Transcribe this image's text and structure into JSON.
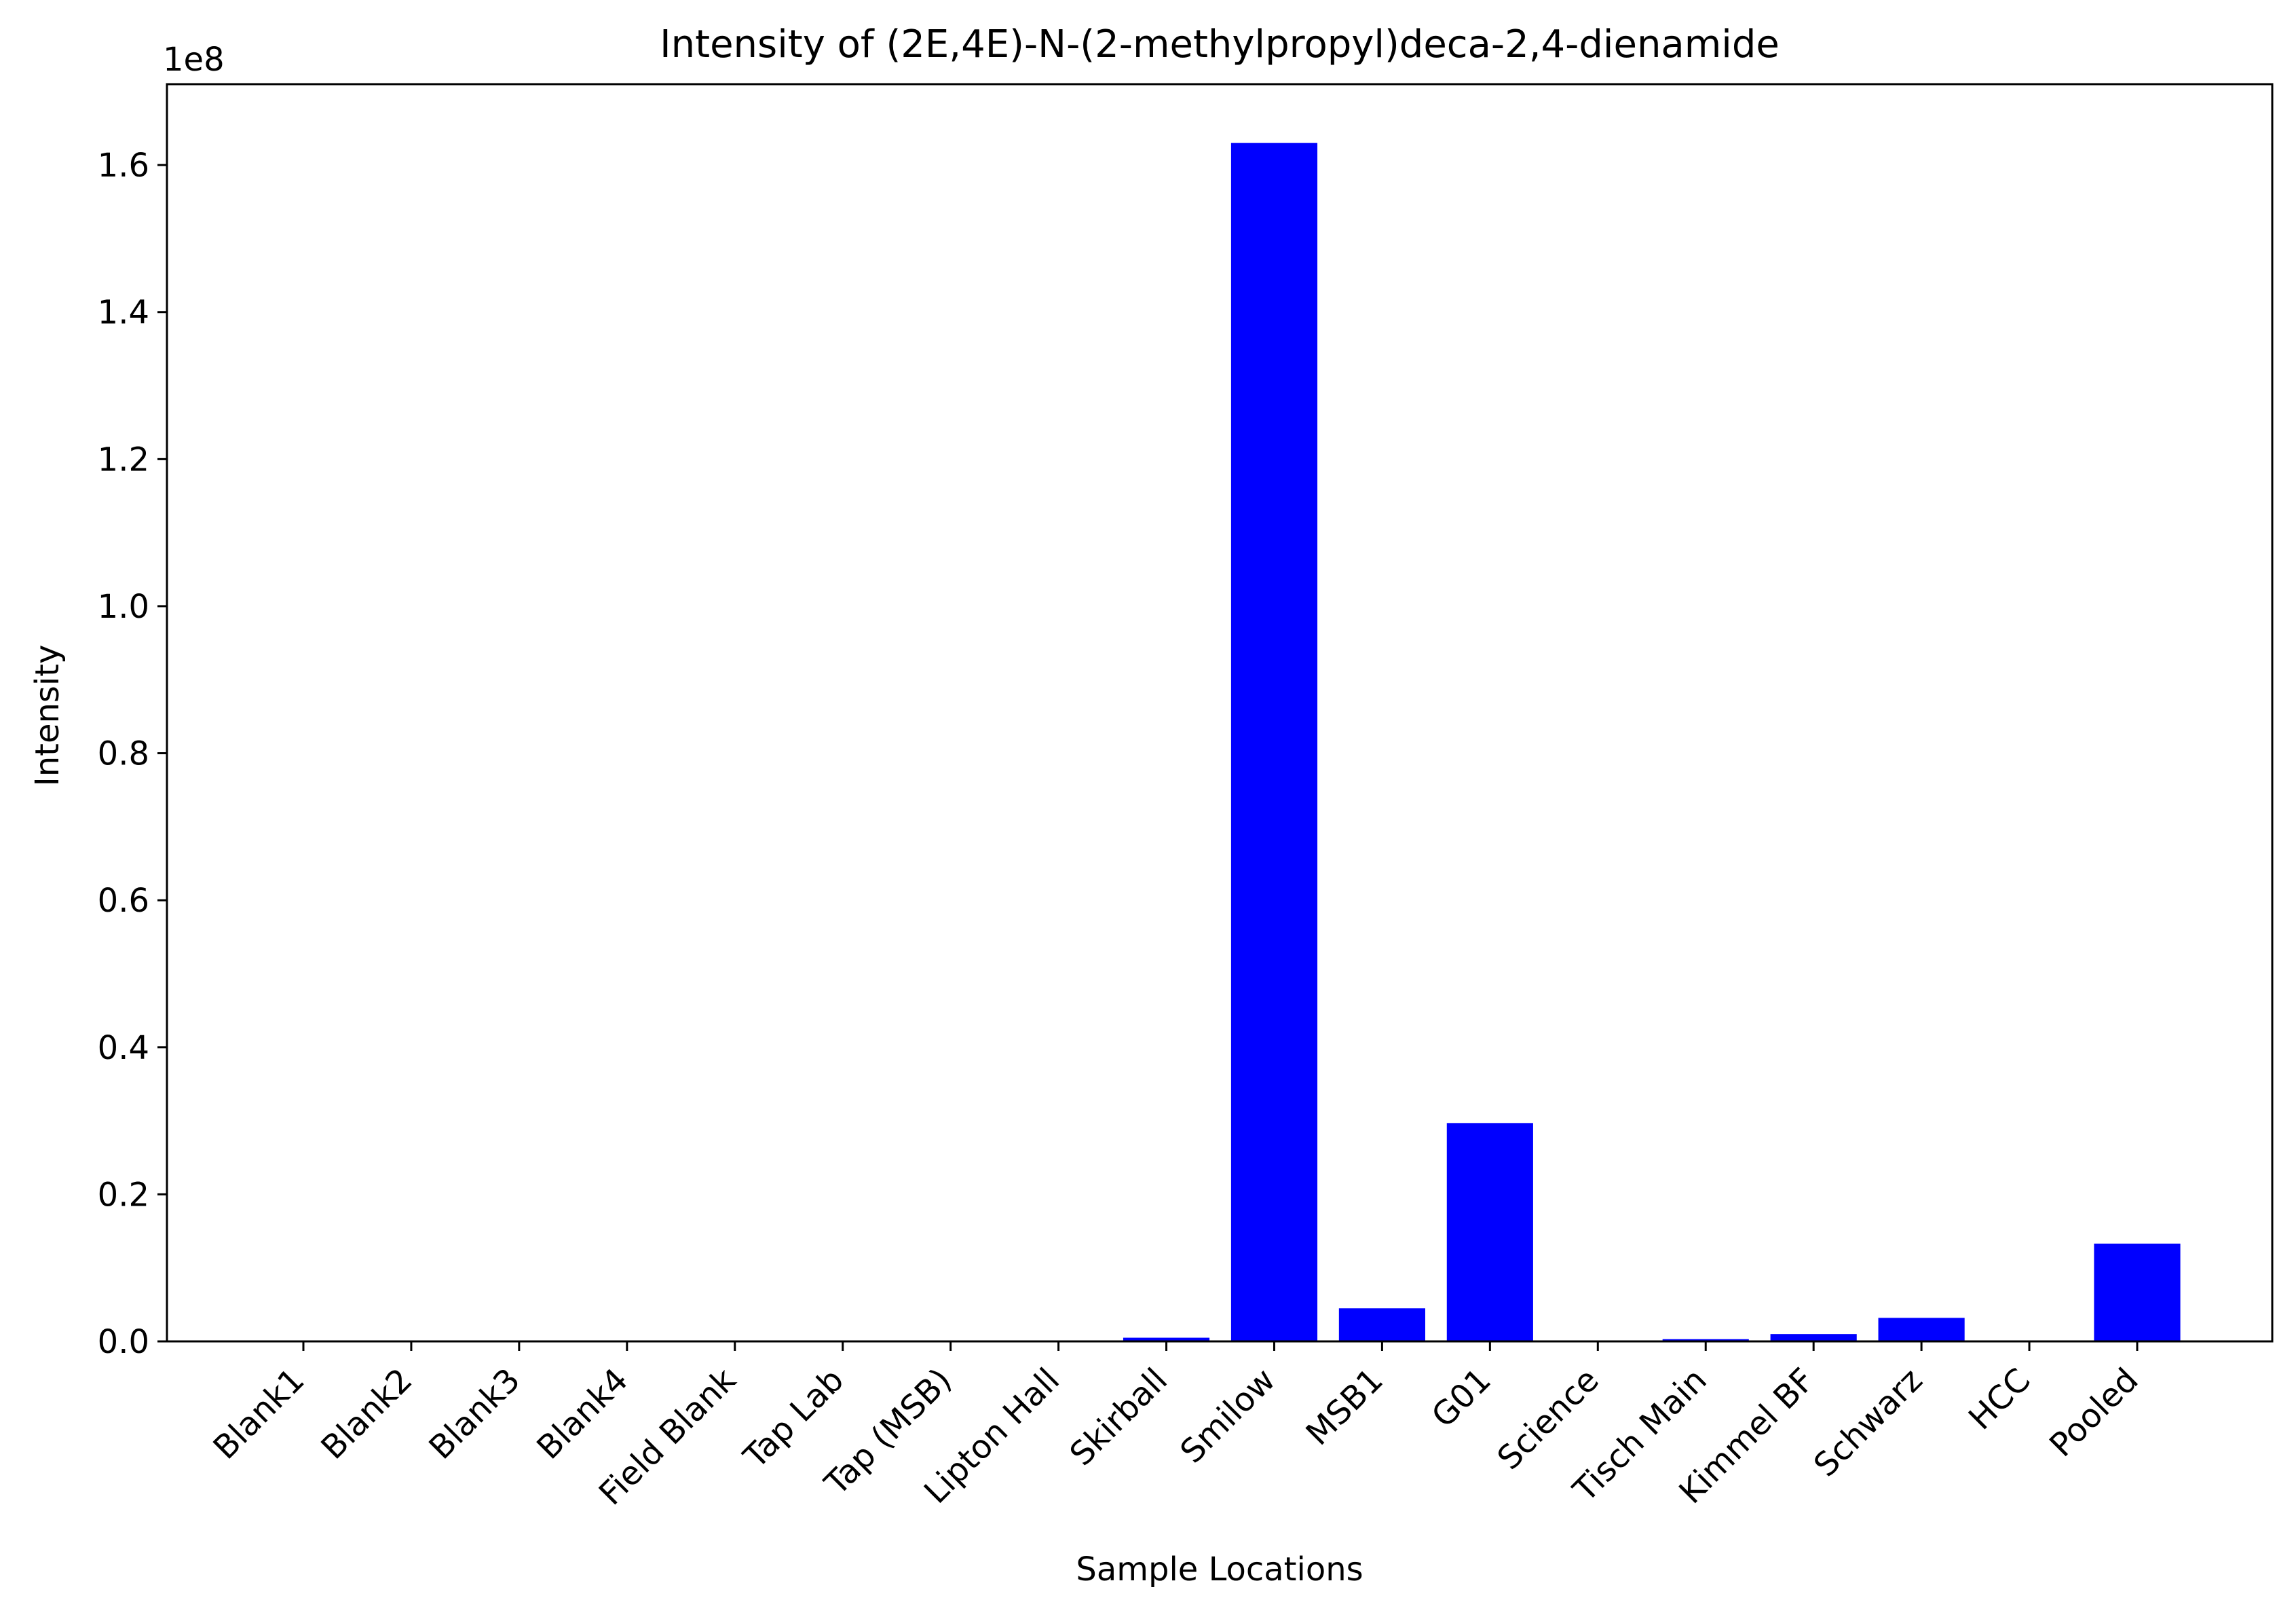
{
  "chart_data": {
    "type": "bar",
    "title": "Intensity of (2E,4E)-N-(2-methylpropyl)deca-2,4-dienamide",
    "xlabel": "Sample Locations",
    "ylabel": "Intensity",
    "offset_label": "1e8",
    "scale": 100000000,
    "ylim": [
      0,
      171000000
    ],
    "yticks": [
      0,
      20000000,
      40000000,
      60000000,
      80000000,
      100000000,
      120000000,
      140000000,
      160000000
    ],
    "ytick_labels": [
      "0.0",
      "0.2",
      "0.4",
      "0.6",
      "0.8",
      "1.0",
      "1.2",
      "1.4",
      "1.6"
    ],
    "categories": [
      "Blank1",
      "Blank2",
      "Blank3",
      "Blank4",
      "Field Blank",
      "Tap Lab",
      "Tap (MSB)",
      "Lipton Hall",
      "Skirball",
      "Smilow",
      "MSB1",
      "G01",
      "Science",
      "Tisch Main",
      "Kimmel BF",
      "Schwarz",
      "HCC",
      "Pooled"
    ],
    "values": [
      0,
      0,
      0,
      0,
      0,
      0,
      0,
      0,
      500000,
      163000000,
      4500000,
      29700000,
      0,
      300000,
      1000000,
      3200000,
      0,
      13300000
    ],
    "bar_color": "#0000ff",
    "grid": false,
    "legend": "none"
  }
}
